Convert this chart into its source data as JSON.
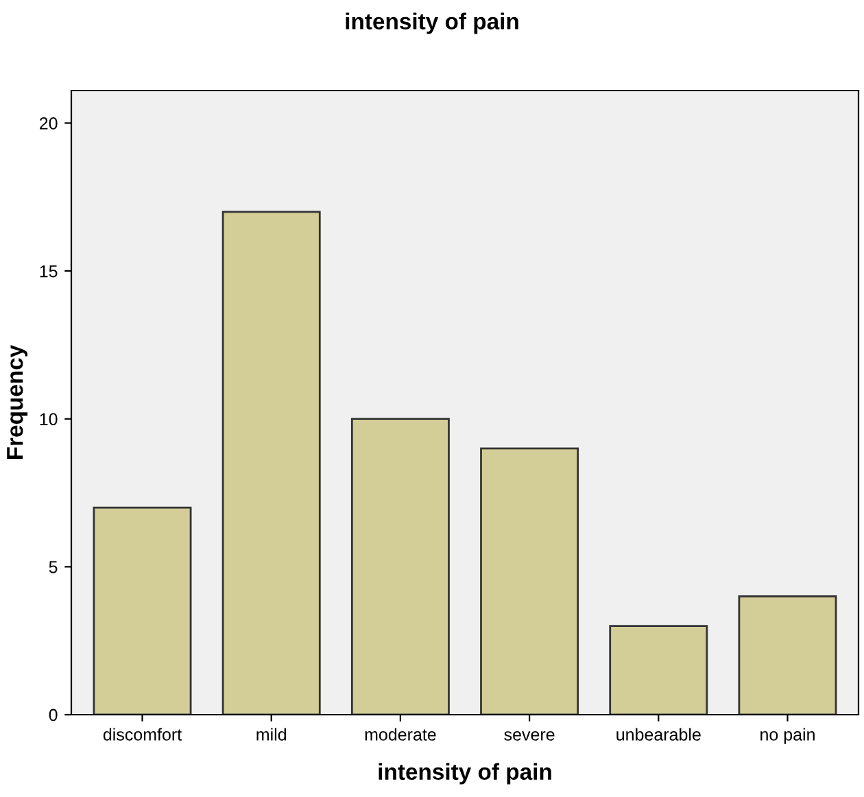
{
  "chart_data": {
    "type": "bar",
    "title": "intensity of pain",
    "xlabel": "intensity of pain",
    "ylabel": "Frequency",
    "categories": [
      "discomfort",
      "mild",
      "moderate",
      "severe",
      "unbearable",
      "no pain"
    ],
    "values": [
      7,
      17,
      10,
      9,
      3,
      4
    ],
    "color": "#d3ce97",
    "ylim": [
      0,
      21.1
    ],
    "yticks": [
      0,
      5,
      10,
      15,
      20
    ],
    "grid": false,
    "legend": false
  }
}
